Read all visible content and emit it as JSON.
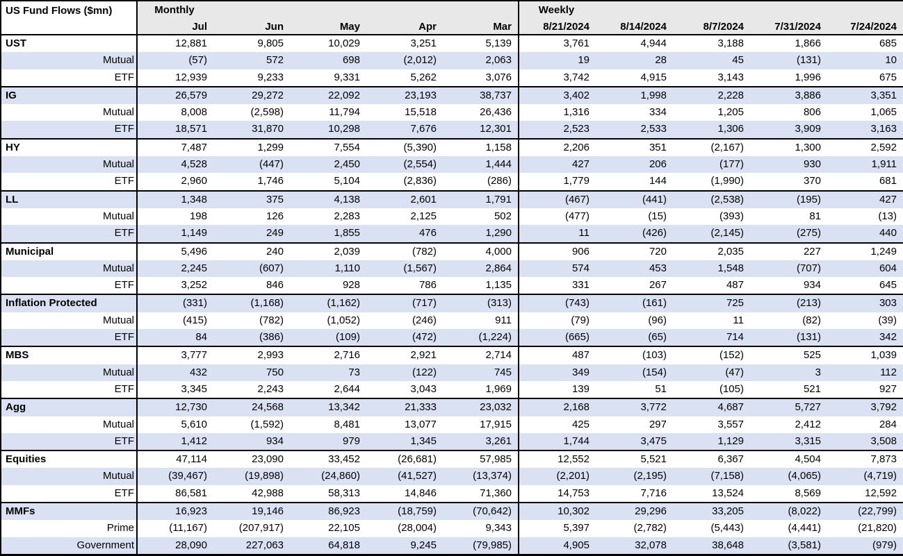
{
  "colors": {
    "stripe_row_bg": "#d9e1f2",
    "header_bg": "#e8e8e8",
    "border": "#000000",
    "text": "#000000",
    "background": "#ffffff"
  },
  "chart_data": {
    "type": "table",
    "title": "US Fund Flows ($mn)",
    "note": "negative values shown in parentheses",
    "sections": [
      {
        "label": "Monthly",
        "columns": [
          "Jul",
          "Jun",
          "May",
          "Apr",
          "Mar"
        ]
      },
      {
        "label": "Weekly",
        "columns": [
          "8/21/2024",
          "8/14/2024",
          "8/7/2024",
          "7/31/2024",
          "7/24/2024"
        ]
      }
    ],
    "groups": [
      {
        "name": "UST",
        "rows": [
          {
            "label": "UST",
            "type": "category",
            "monthly": [
              "12,881",
              "9,805",
              "10,029",
              "3,251",
              "5,139"
            ],
            "weekly": [
              "3,761",
              "4,944",
              "3,188",
              "1,866",
              "685"
            ]
          },
          {
            "label": "Mutual",
            "type": "sub",
            "monthly": [
              "(57)",
              "572",
              "698",
              "(2,012)",
              "2,063"
            ],
            "weekly": [
              "19",
              "28",
              "45",
              "(131)",
              "10"
            ]
          },
          {
            "label": "ETF",
            "type": "sub",
            "monthly": [
              "12,939",
              "9,233",
              "9,331",
              "5,262",
              "3,076"
            ],
            "weekly": [
              "3,742",
              "4,915",
              "3,143",
              "1,996",
              "675"
            ]
          }
        ]
      },
      {
        "name": "IG",
        "rows": [
          {
            "label": "IG",
            "type": "category",
            "monthly": [
              "26,579",
              "29,272",
              "22,092",
              "23,193",
              "38,737"
            ],
            "weekly": [
              "3,402",
              "1,998",
              "2,228",
              "3,886",
              "3,351"
            ]
          },
          {
            "label": "Mutual",
            "type": "sub",
            "monthly": [
              "8,008",
              "(2,598)",
              "11,794",
              "15,518",
              "26,436"
            ],
            "weekly": [
              "1,316",
              "334",
              "1,205",
              "806",
              "1,065"
            ]
          },
          {
            "label": "ETF",
            "type": "sub",
            "monthly": [
              "18,571",
              "31,870",
              "10,298",
              "7,676",
              "12,301"
            ],
            "weekly": [
              "2,523",
              "2,533",
              "1,306",
              "3,909",
              "3,163"
            ]
          }
        ]
      },
      {
        "name": "HY",
        "rows": [
          {
            "label": "HY",
            "type": "category",
            "monthly": [
              "7,487",
              "1,299",
              "7,554",
              "(5,390)",
              "1,158"
            ],
            "weekly": [
              "2,206",
              "351",
              "(2,167)",
              "1,300",
              "2,592"
            ]
          },
          {
            "label": "Mutual",
            "type": "sub",
            "monthly": [
              "4,528",
              "(447)",
              "2,450",
              "(2,554)",
              "1,444"
            ],
            "weekly": [
              "427",
              "206",
              "(177)",
              "930",
              "1,911"
            ]
          },
          {
            "label": "ETF",
            "type": "sub",
            "monthly": [
              "2,960",
              "1,746",
              "5,104",
              "(2,836)",
              "(286)"
            ],
            "weekly": [
              "1,779",
              "144",
              "(1,990)",
              "370",
              "681"
            ]
          }
        ]
      },
      {
        "name": "LL",
        "rows": [
          {
            "label": "LL",
            "type": "category",
            "monthly": [
              "1,348",
              "375",
              "4,138",
              "2,601",
              "1,791"
            ],
            "weekly": [
              "(467)",
              "(441)",
              "(2,538)",
              "(195)",
              "427"
            ]
          },
          {
            "label": "Mutual",
            "type": "sub",
            "monthly": [
              "198",
              "126",
              "2,283",
              "2,125",
              "502"
            ],
            "weekly": [
              "(477)",
              "(15)",
              "(393)",
              "81",
              "(13)"
            ]
          },
          {
            "label": "ETF",
            "type": "sub",
            "monthly": [
              "1,149",
              "249",
              "1,855",
              "476",
              "1,290"
            ],
            "weekly": [
              "11",
              "(426)",
              "(2,145)",
              "(275)",
              "440"
            ]
          }
        ]
      },
      {
        "name": "Municipal",
        "rows": [
          {
            "label": "Municipal",
            "type": "category",
            "monthly": [
              "5,496",
              "240",
              "2,039",
              "(782)",
              "4,000"
            ],
            "weekly": [
              "906",
              "720",
              "2,035",
              "227",
              "1,249"
            ]
          },
          {
            "label": "Mutual",
            "type": "sub",
            "monthly": [
              "2,245",
              "(607)",
              "1,110",
              "(1,567)",
              "2,864"
            ],
            "weekly": [
              "574",
              "453",
              "1,548",
              "(707)",
              "604"
            ]
          },
          {
            "label": "ETF",
            "type": "sub",
            "monthly": [
              "3,252",
              "846",
              "928",
              "786",
              "1,135"
            ],
            "weekly": [
              "331",
              "267",
              "487",
              "934",
              "645"
            ]
          }
        ]
      },
      {
        "name": "Inflation Protected",
        "rows": [
          {
            "label": "Inflation Protected",
            "type": "category",
            "monthly": [
              "(331)",
              "(1,168)",
              "(1,162)",
              "(717)",
              "(313)"
            ],
            "weekly": [
              "(743)",
              "(161)",
              "725",
              "(213)",
              "303"
            ]
          },
          {
            "label": "Mutual",
            "type": "sub",
            "monthly": [
              "(415)",
              "(782)",
              "(1,052)",
              "(246)",
              "911"
            ],
            "weekly": [
              "(79)",
              "(96)",
              "11",
              "(82)",
              "(39)"
            ]
          },
          {
            "label": "ETF",
            "type": "sub",
            "monthly": [
              "84",
              "(386)",
              "(109)",
              "(472)",
              "(1,224)"
            ],
            "weekly": [
              "(665)",
              "(65)",
              "714",
              "(131)",
              "342"
            ]
          }
        ]
      },
      {
        "name": "MBS",
        "rows": [
          {
            "label": "MBS",
            "type": "category",
            "monthly": [
              "3,777",
              "2,993",
              "2,716",
              "2,921",
              "2,714"
            ],
            "weekly": [
              "487",
              "(103)",
              "(152)",
              "525",
              "1,039"
            ]
          },
          {
            "label": "Mutual",
            "type": "sub",
            "monthly": [
              "432",
              "750",
              "73",
              "(122)",
              "745"
            ],
            "weekly": [
              "349",
              "(154)",
              "(47)",
              "3",
              "112"
            ]
          },
          {
            "label": "ETF",
            "type": "sub",
            "monthly": [
              "3,345",
              "2,243",
              "2,644",
              "3,043",
              "1,969"
            ],
            "weekly": [
              "139",
              "51",
              "(105)",
              "521",
              "927"
            ]
          }
        ]
      },
      {
        "name": "Agg",
        "rows": [
          {
            "label": "Agg",
            "type": "category",
            "monthly": [
              "12,730",
              "24,568",
              "13,342",
              "21,333",
              "23,032"
            ],
            "weekly": [
              "2,168",
              "3,772",
              "4,687",
              "5,727",
              "3,792"
            ]
          },
          {
            "label": "Mutual",
            "type": "sub",
            "monthly": [
              "5,610",
              "(1,592)",
              "8,481",
              "13,077",
              "17,915"
            ],
            "weekly": [
              "425",
              "297",
              "3,557",
              "2,412",
              "284"
            ]
          },
          {
            "label": "ETF",
            "type": "sub",
            "monthly": [
              "1,412",
              "934",
              "979",
              "1,345",
              "3,261"
            ],
            "weekly": [
              "1,744",
              "3,475",
              "1,129",
              "3,315",
              "3,508"
            ]
          }
        ]
      },
      {
        "name": "Equities",
        "rows": [
          {
            "label": "Equities",
            "type": "category",
            "monthly": [
              "47,114",
              "23,090",
              "33,452",
              "(26,681)",
              "57,985"
            ],
            "weekly": [
              "12,552",
              "5,521",
              "6,367",
              "4,504",
              "7,873"
            ]
          },
          {
            "label": "Mutual",
            "type": "sub",
            "monthly": [
              "(39,467)",
              "(19,898)",
              "(24,860)",
              "(41,527)",
              "(13,374)"
            ],
            "weekly": [
              "(2,201)",
              "(2,195)",
              "(7,158)",
              "(4,065)",
              "(4,719)"
            ]
          },
          {
            "label": "ETF",
            "type": "sub",
            "monthly": [
              "86,581",
              "42,988",
              "58,313",
              "14,846",
              "71,360"
            ],
            "weekly": [
              "14,753",
              "7,716",
              "13,524",
              "8,569",
              "12,592"
            ]
          }
        ]
      },
      {
        "name": "MMFs",
        "rows": [
          {
            "label": "MMFs",
            "type": "category",
            "monthly": [
              "16,923",
              "19,146",
              "86,923",
              "(18,759)",
              "(70,642)"
            ],
            "weekly": [
              "10,302",
              "29,296",
              "33,205",
              "(8,022)",
              "(22,799)"
            ]
          },
          {
            "label": "Prime",
            "type": "sub",
            "monthly": [
              "(11,167)",
              "(207,917)",
              "22,105",
              "(28,004)",
              "9,343"
            ],
            "weekly": [
              "5,397",
              "(2,782)",
              "(5,443)",
              "(4,441)",
              "(21,820)"
            ]
          },
          {
            "label": "Government",
            "type": "sub",
            "monthly": [
              "28,090",
              "227,063",
              "64,818",
              "9,245",
              "(79,985)"
            ],
            "weekly": [
              "4,905",
              "32,078",
              "38,648",
              "(3,581)",
              "(979)"
            ]
          }
        ]
      }
    ]
  }
}
